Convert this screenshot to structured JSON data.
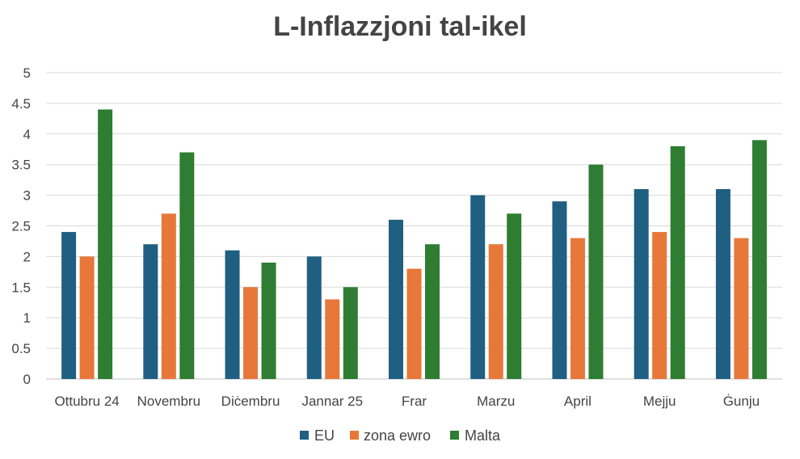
{
  "chart_data": {
    "type": "bar",
    "title": "L-Inflazzjoni tal-ikel",
    "xlabel": "",
    "ylabel": "",
    "categories": [
      "Ottubru 24",
      "Novembru",
      "Diċembru",
      "Jannar 25",
      "Frar",
      "Marzu",
      "April",
      "Mejju",
      "Ġunju"
    ],
    "series": [
      {
        "name": "EU",
        "color": "#1f5f82",
        "values": [
          2.4,
          2.2,
          2.1,
          2.0,
          2.6,
          3.0,
          2.9,
          3.1,
          3.1
        ]
      },
      {
        "name": "zona ewro",
        "color": "#e8773a",
        "values": [
          2.0,
          2.7,
          1.5,
          1.3,
          1.8,
          2.2,
          2.3,
          2.4,
          2.3
        ]
      },
      {
        "name": "Malta",
        "color": "#2e7d32",
        "values": [
          4.4,
          3.7,
          1.9,
          1.5,
          2.2,
          2.7,
          3.5,
          3.8,
          3.9
        ]
      }
    ],
    "ylim": [
      0,
      5
    ],
    "yticks": [
      "0",
      "0.5",
      "1",
      "1.5",
      "2",
      "2.5",
      "3",
      "3.5",
      "4",
      "4.5",
      "5"
    ],
    "grid": true,
    "legend_position": "bottom"
  }
}
